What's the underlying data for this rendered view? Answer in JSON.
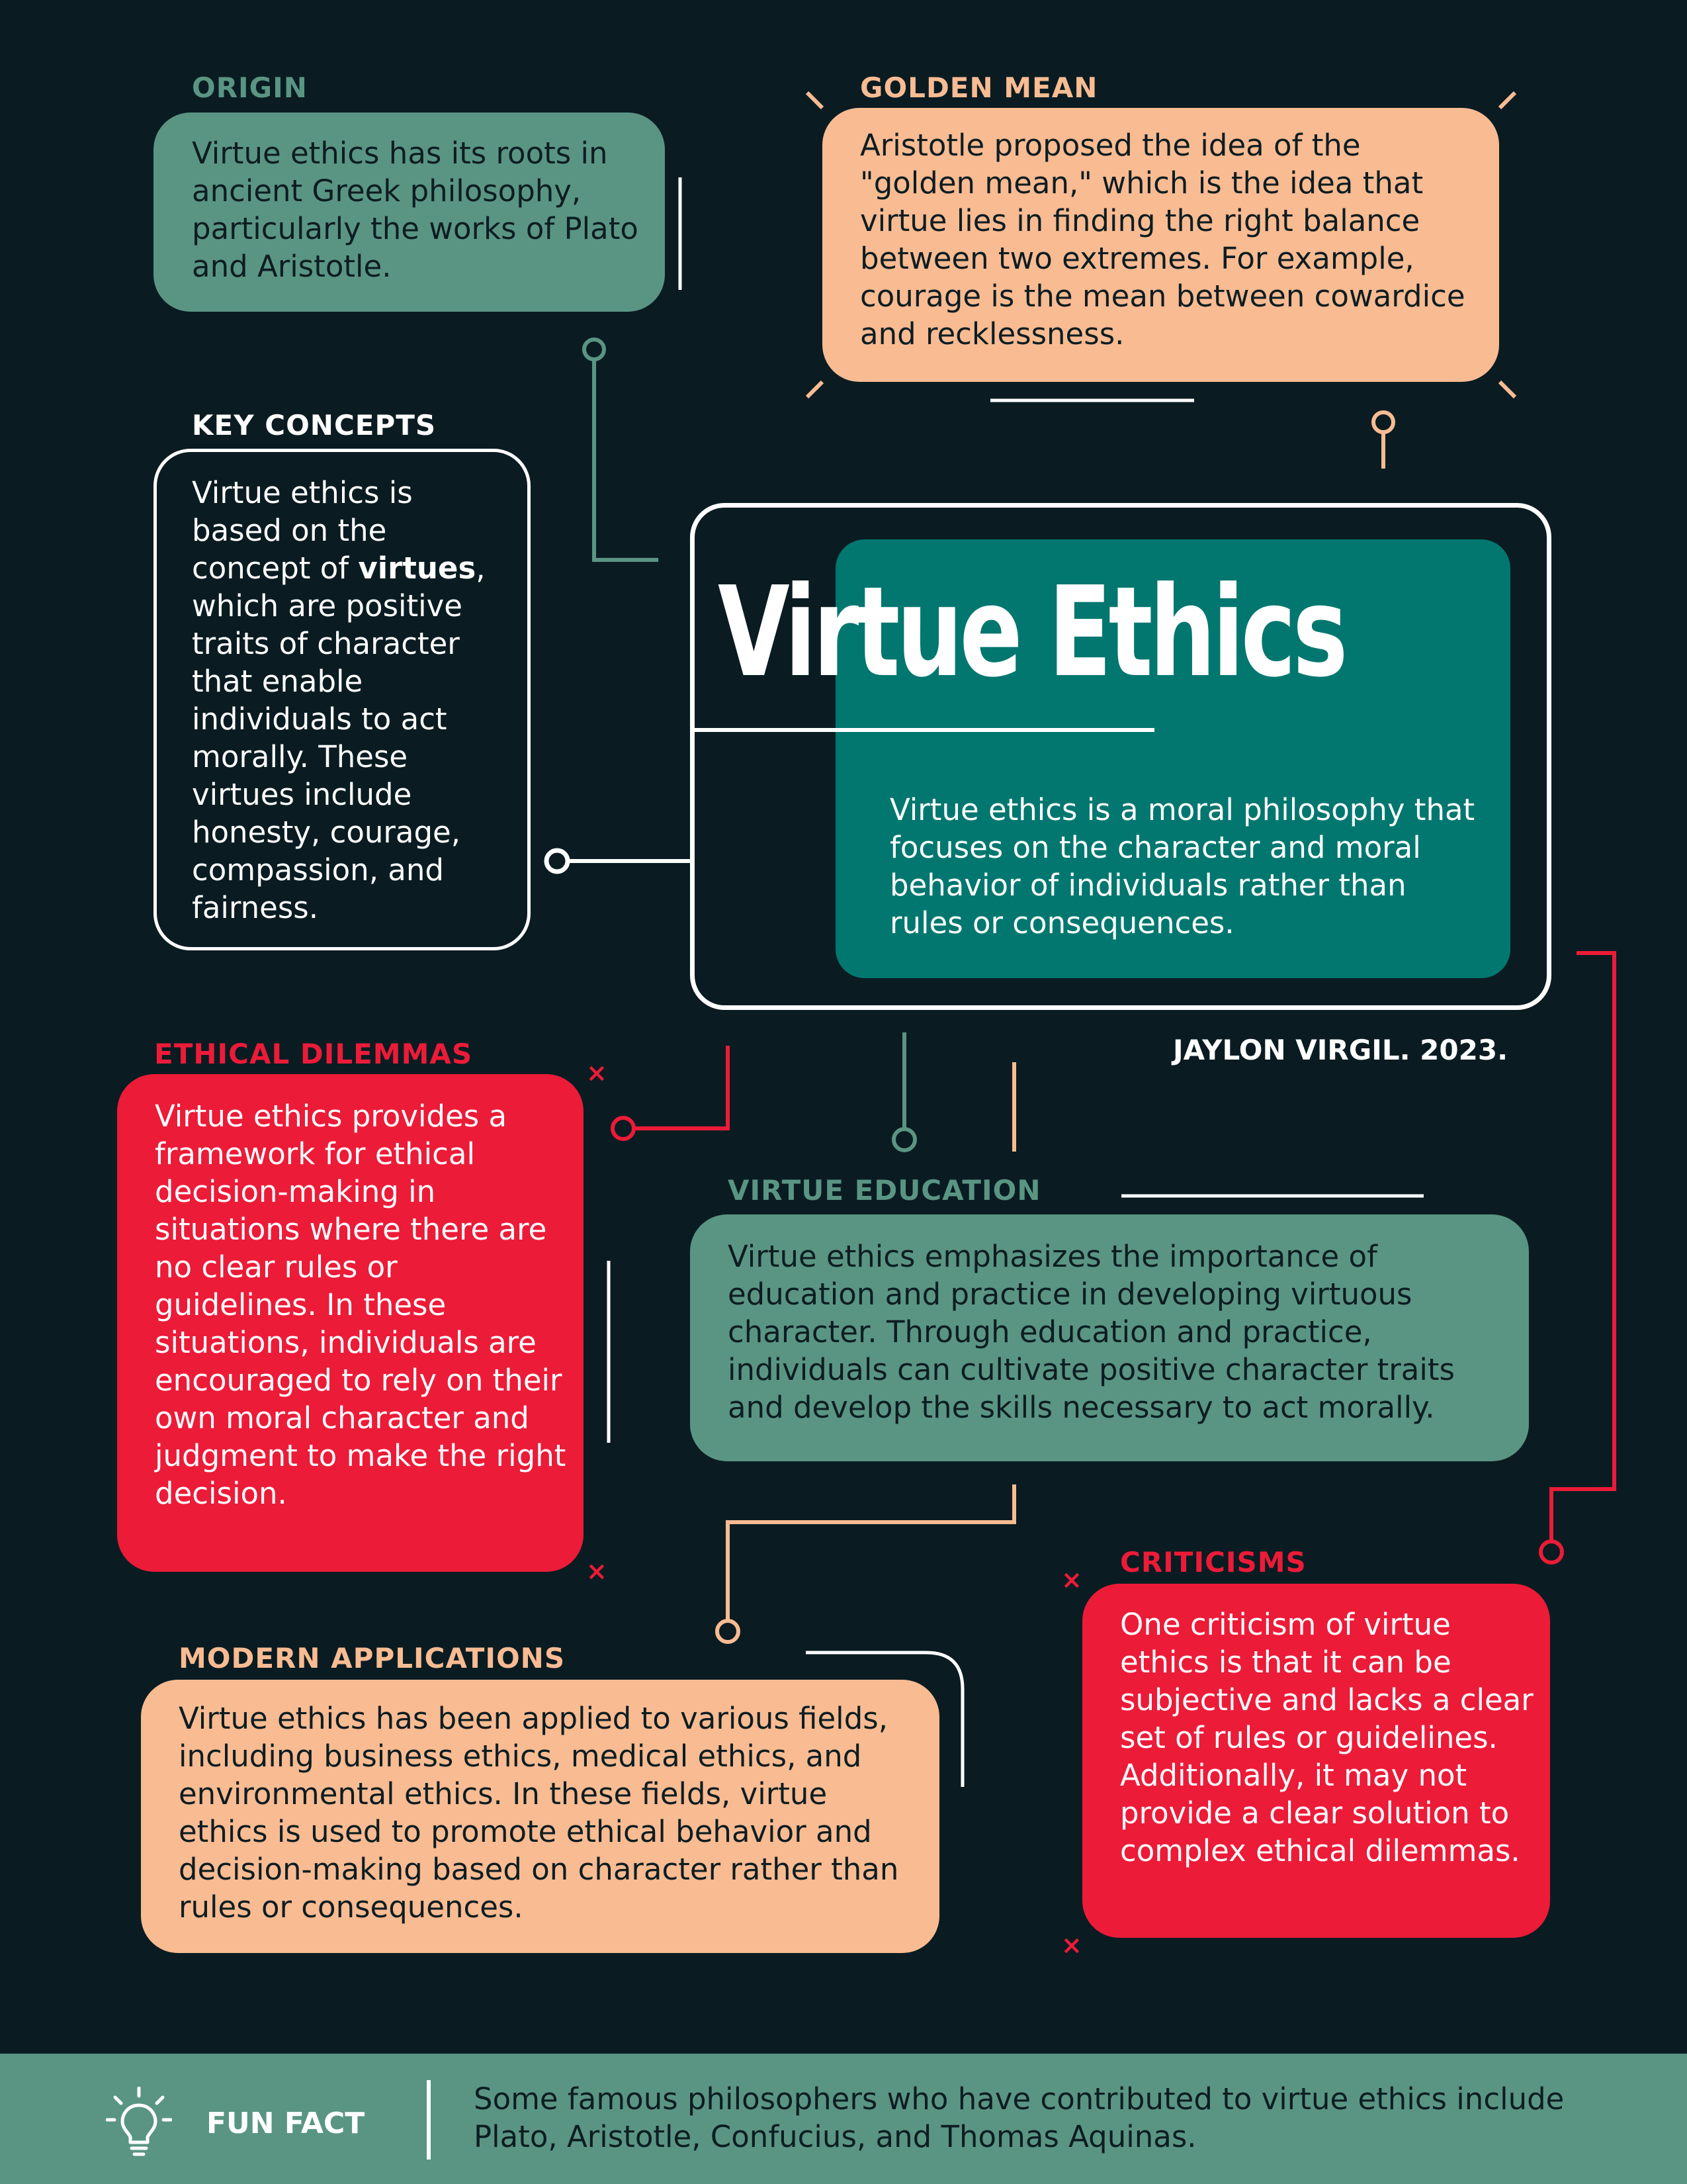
{
  "hero": {
    "title": "Virtue Ethics",
    "description": "Virtue ethics is a moral philosophy that focuses on the character and moral behavior of individuals rather than rules or consequences.",
    "author": "JAYLON VIRGIL. 2023."
  },
  "sections": {
    "origin": {
      "label": "ORIGIN",
      "text": "Virtue ethics has its roots in ancient Greek philosophy, particularly the works of Plato and Aristotle."
    },
    "golden_mean": {
      "label": "GOLDEN MEAN",
      "text": "Aristotle proposed the idea of the \"golden mean,\" which is the idea that virtue lies in finding the right balance between two extremes. For example, courage is the mean between cowardice and recklessness."
    },
    "key_concepts": {
      "label": "KEY CONCEPTS",
      "text_before": "Virtue ethics is based on the concept of ",
      "text_bold": "virtues",
      "text_after": ", which are positive traits of character that enable individuals to act morally. These virtues include honesty, courage, compassion, and fairness."
    },
    "ethical_dilemmas": {
      "label": "ETHICAL DILEMMAS",
      "text": "Virtue ethics provides a framework for ethical decision-making in situations where there are no clear rules or guidelines. In these situations, individuals are encouraged to rely on their own moral character and judgment to make the right decision."
    },
    "virtue_education": {
      "label": "VIRTUE EDUCATION",
      "text": "Virtue ethics emphasizes the importance of education and practice in developing virtuous character. Through education and practice, individuals can cultivate positive character traits and develop the skills necessary to act morally."
    },
    "modern_applications": {
      "label": "MODERN APPLICATIONS",
      "text": "Virtue ethics has been applied to various fields, including business ethics, medical ethics, and environmental ethics. In these fields, virtue ethics is used to promote ethical behavior and decision-making based on character rather than rules or consequences."
    },
    "criticisms": {
      "label": "CRITICISMS",
      "text": "One criticism of virtue ethics is that it can be subjective and lacks a clear set of rules or guidelines. Additionally, it may not provide a clear solution to complex ethical dilemmas."
    }
  },
  "footer": {
    "label": "FUN FACT",
    "icon": "lightbulb-icon",
    "text": "Some famous philosophers who have contributed to virtue ethics include Plato, Aristotle, Confucius, and Thomas Aquinas."
  },
  "colors": {
    "background": "#0a1c22",
    "green": "#5a9583",
    "peach": "#f8bb92",
    "red": "#ec1b38",
    "teal": "#02776f",
    "white": "#ffffff"
  }
}
